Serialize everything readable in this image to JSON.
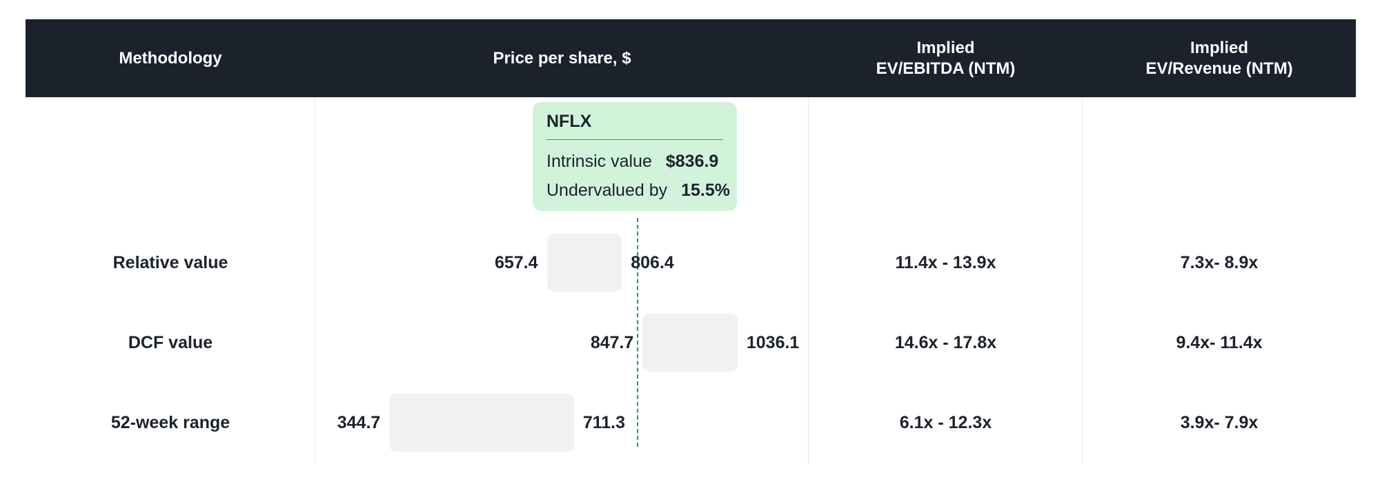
{
  "header": {
    "methodology": "Methodology",
    "price": "Price per share, $",
    "ev_ebitda": "Implied\nEV/EBITDA (NTM)",
    "ev_revenue": "Implied\nEV/Revenue (NTM)"
  },
  "callout": {
    "ticker": "NFLX",
    "intrinsic_label": "Intrinsic value",
    "intrinsic_value": "$836.9",
    "undervalued_label": "Undervalued by",
    "undervalued_value": "15.5%"
  },
  "rows": [
    {
      "methodology": "Relative value",
      "low_label": "657.4",
      "high_label": "806.4",
      "ev_ebitda": "11.4x - 13.9x",
      "ev_revenue": "7.3x- 8.9x"
    },
    {
      "methodology": "DCF value",
      "low_label": "847.7",
      "high_label": "1036.1",
      "ev_ebitda": "14.6x - 17.8x",
      "ev_revenue": "9.4x- 11.4x"
    },
    {
      "methodology": "52-week range",
      "low_label": "344.7",
      "high_label": "711.3",
      "ev_ebitda": "6.1x - 12.3x",
      "ev_revenue": "3.9x- 7.9x"
    }
  ],
  "colors": {
    "header_bg": "#1b222c",
    "bar": "#f1f1f1",
    "reference_line": "#2e9c4e",
    "callout_bg": "#d1f3da"
  },
  "chart_data": {
    "type": "bar",
    "orientation": "horizontal",
    "subtype": "floating-range",
    "categories": [
      "Relative value",
      "DCF value",
      "52-week range"
    ],
    "series": [
      {
        "low": [
          657.4,
          847.7,
          344.7
        ],
        "high": [
          806.4,
          1036.1,
          711.3
        ]
      }
    ],
    "reference_value": 836.9,
    "xlabel": "Price per share, $"
  }
}
